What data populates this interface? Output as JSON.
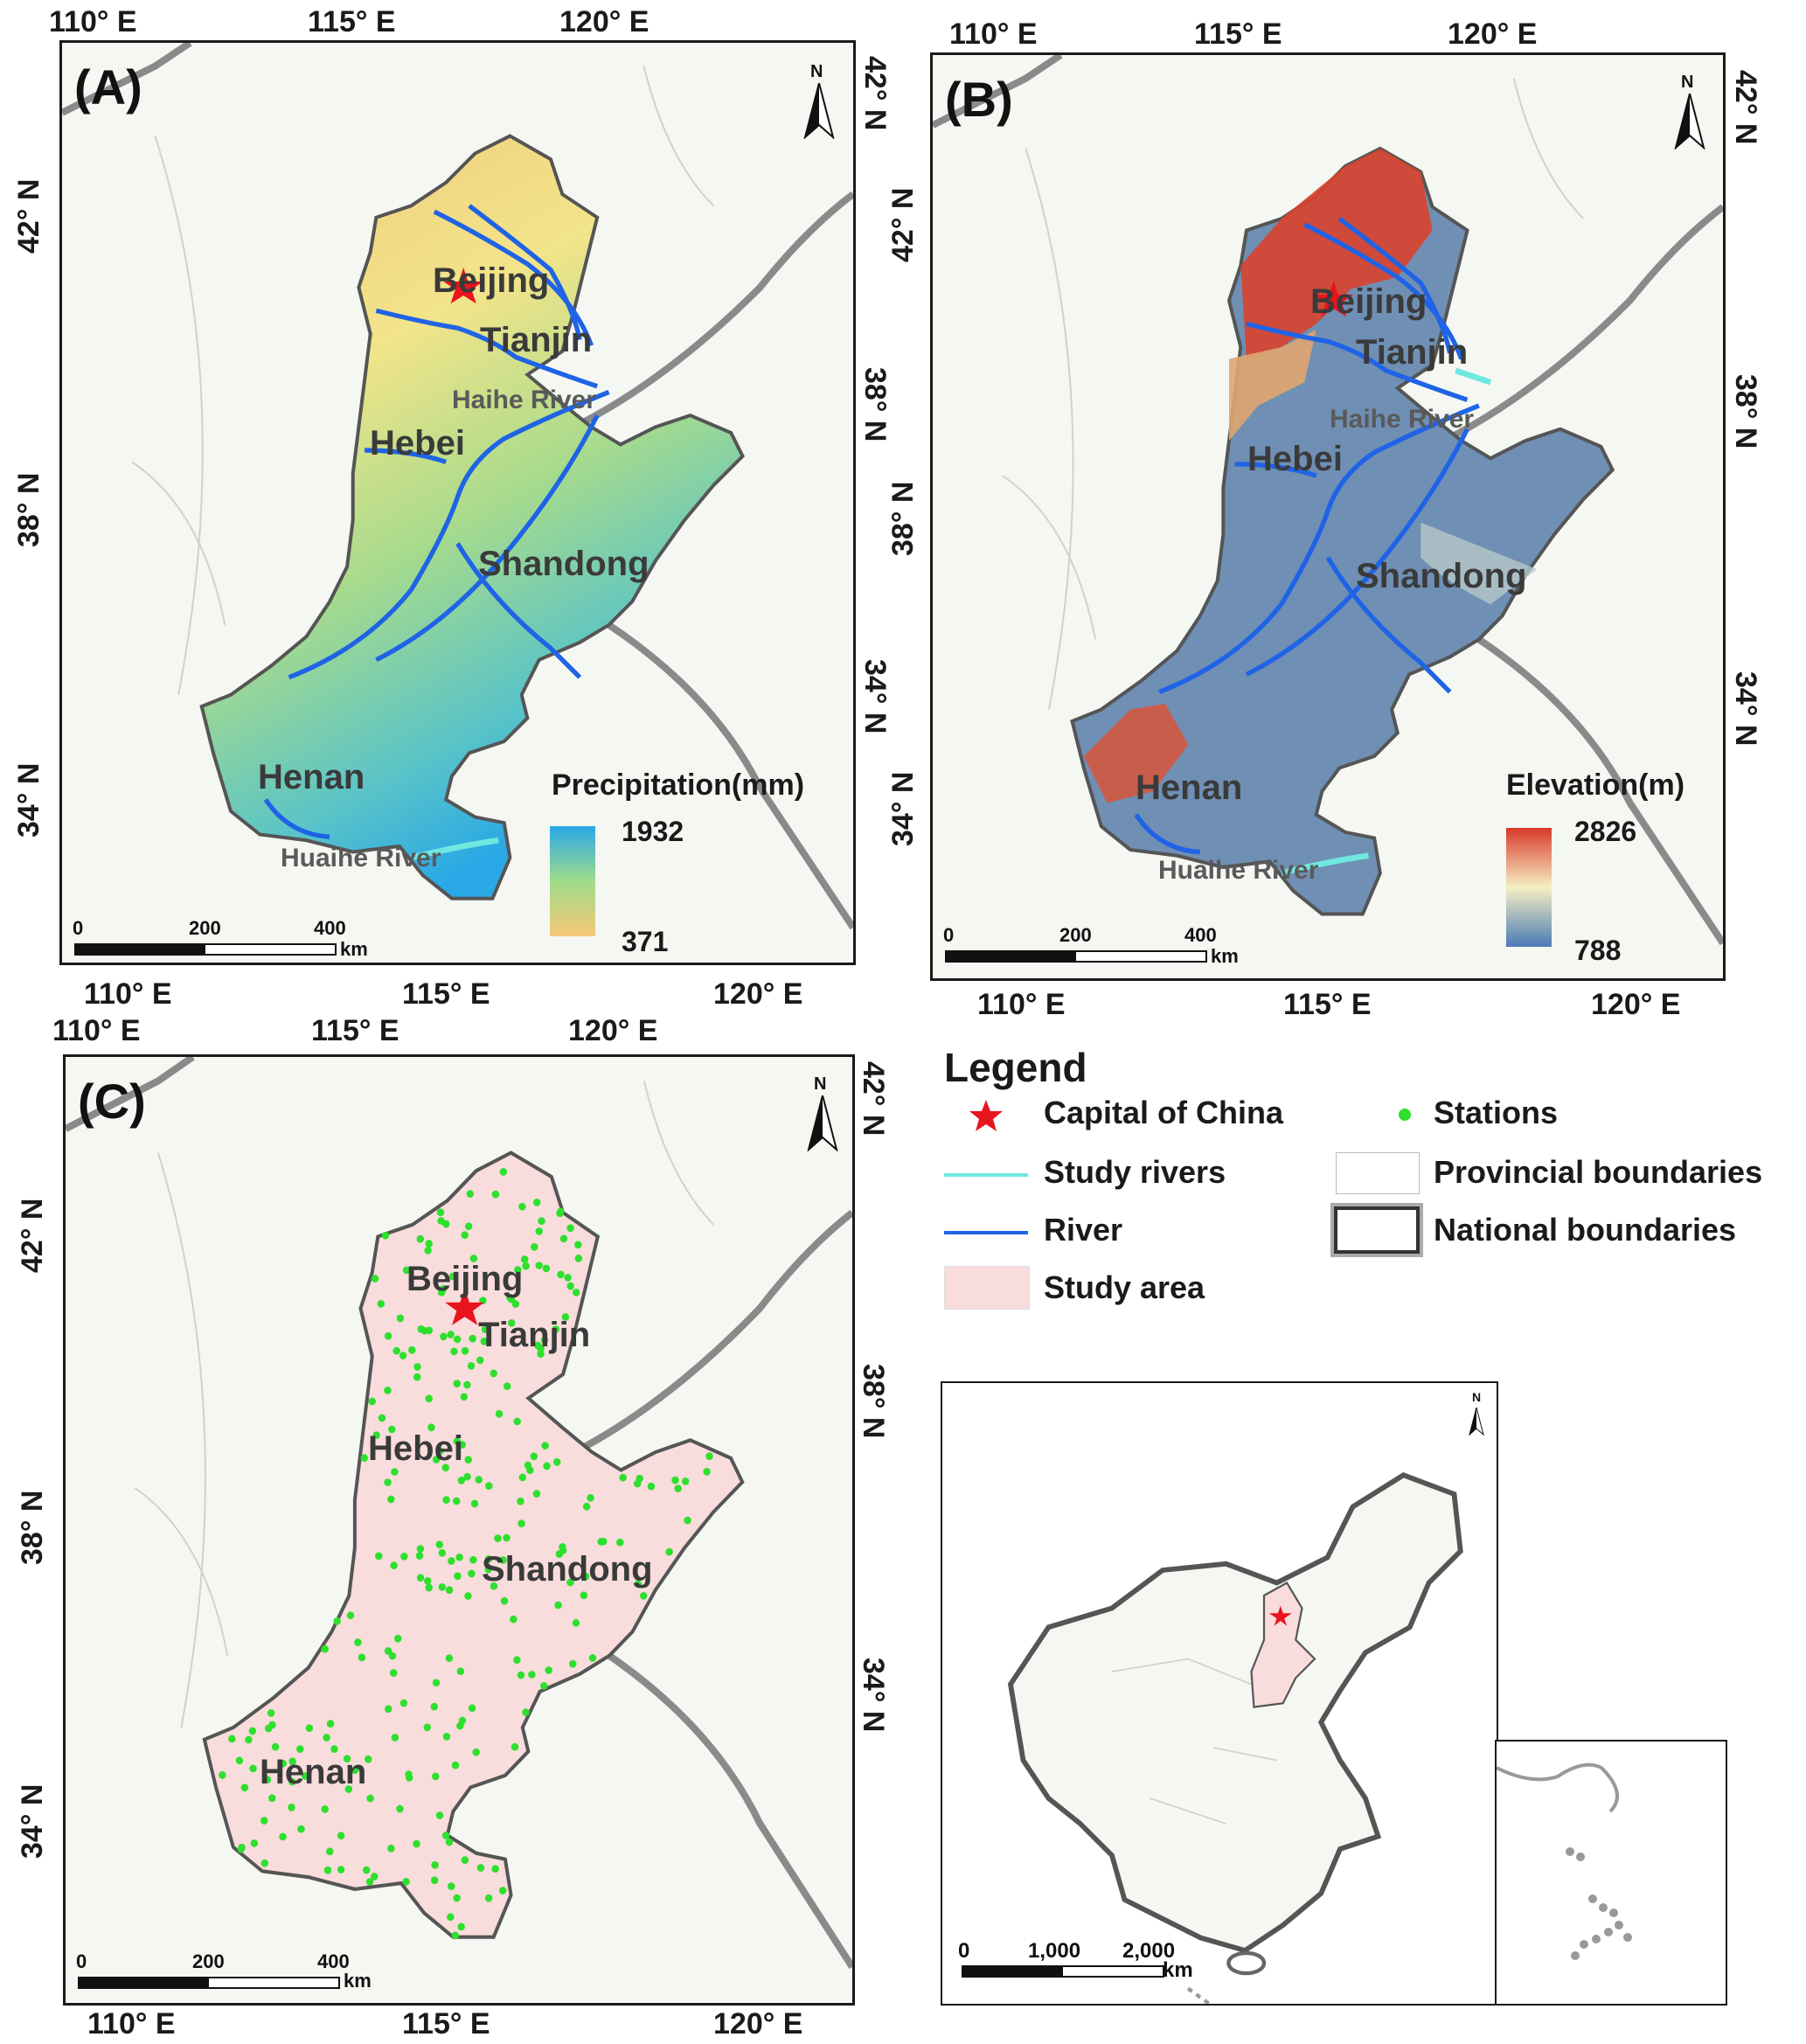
{
  "axes": {
    "lon_labels": [
      "110° E",
      "115° E",
      "120° E"
    ],
    "lat_labels": [
      "34° N",
      "38° N",
      "42° N"
    ]
  },
  "panels": {
    "a": {
      "label": "(A)",
      "legend_title": "Precipitation(mm)",
      "max": "1932",
      "min": "371"
    },
    "b": {
      "label": "(B)",
      "legend_title": "Elevation(m)",
      "max": "2826",
      "min": "788"
    },
    "c": {
      "label": "(C)"
    }
  },
  "places": {
    "beijing": "Beijing",
    "tianjin": "Tianjin",
    "hebei": "Hebei",
    "shandong": "Shandong",
    "henan": "Henan",
    "haihe": "Haihe River",
    "huaihe": "Huaihe River"
  },
  "north_label": "N",
  "scalebar": {
    "ticks": [
      "0",
      "200",
      "400"
    ],
    "unit": "km"
  },
  "inset_scalebar": {
    "ticks": [
      "0",
      "1,000",
      "2,000"
    ],
    "unit": "km"
  },
  "legend": {
    "title": "Legend",
    "items": {
      "capital": "Capital of China",
      "stations": "Stations",
      "study_rivers": "Study rivers",
      "provincial": "Provincial boundaries",
      "river": "River",
      "national": "National boundaries",
      "study_area": "Study area"
    }
  },
  "colors": {
    "study_area_fill": "#f9dcdc",
    "station": "#2ee02e",
    "river": "#1f63e6",
    "study_river": "#6fe8e0",
    "capital": "#e8141e",
    "precip_high": "#2aa8e6",
    "precip_low": "#f5c878",
    "elev_high": "#d93a2a",
    "elev_low": "#4b7bb5"
  }
}
